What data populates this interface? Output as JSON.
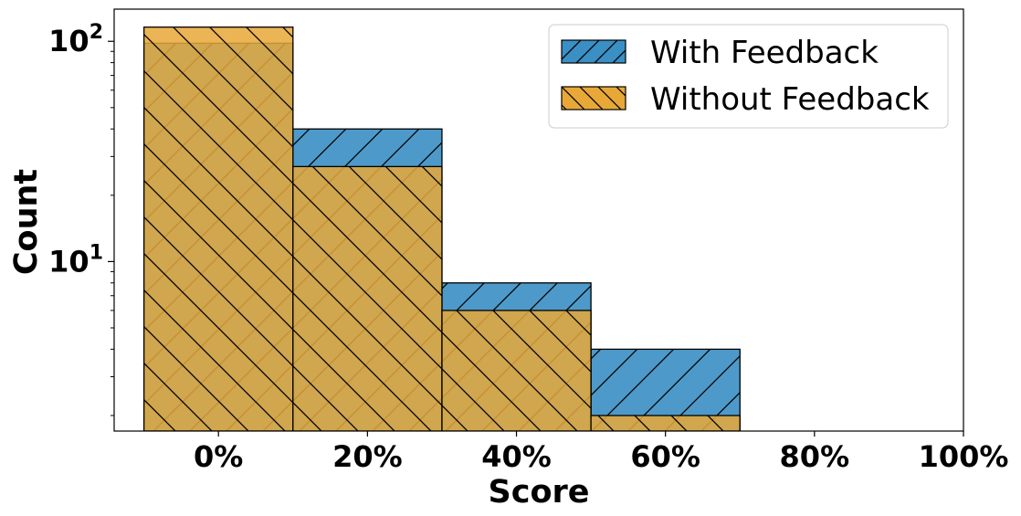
{
  "chart_data": {
    "type": "bar",
    "title": "",
    "xlabel": "Score",
    "ylabel": "Count",
    "y_scale": "log",
    "ylim": [
      1.7,
      140
    ],
    "xlim": [
      -0.14,
      1.0
    ],
    "bin_edges": [
      -0.1,
      0.1,
      0.3,
      0.5,
      0.7
    ],
    "x_ticks": [
      0,
      0.2,
      0.4,
      0.6,
      0.8,
      1.0
    ],
    "x_tick_labels": [
      "0%",
      "20%",
      "40%",
      "60%",
      "80%",
      "100%"
    ],
    "y_ticks": [
      {
        "value": 10,
        "base": "10",
        "exp": "1"
      },
      {
        "value": 100,
        "base": "10",
        "exp": "2"
      }
    ],
    "series": [
      {
        "name": "With Feedback",
        "values": [
          98,
          40,
          8,
          4
        ],
        "color": "#3A8FC4",
        "hatch": "forward-diagonal"
      },
      {
        "name": "Without Feedback",
        "values": [
          116,
          27,
          6,
          2
        ],
        "color": "#E8A838",
        "hatch": "back-diagonal"
      }
    ],
    "legend_position": "top-right",
    "grid": false
  }
}
